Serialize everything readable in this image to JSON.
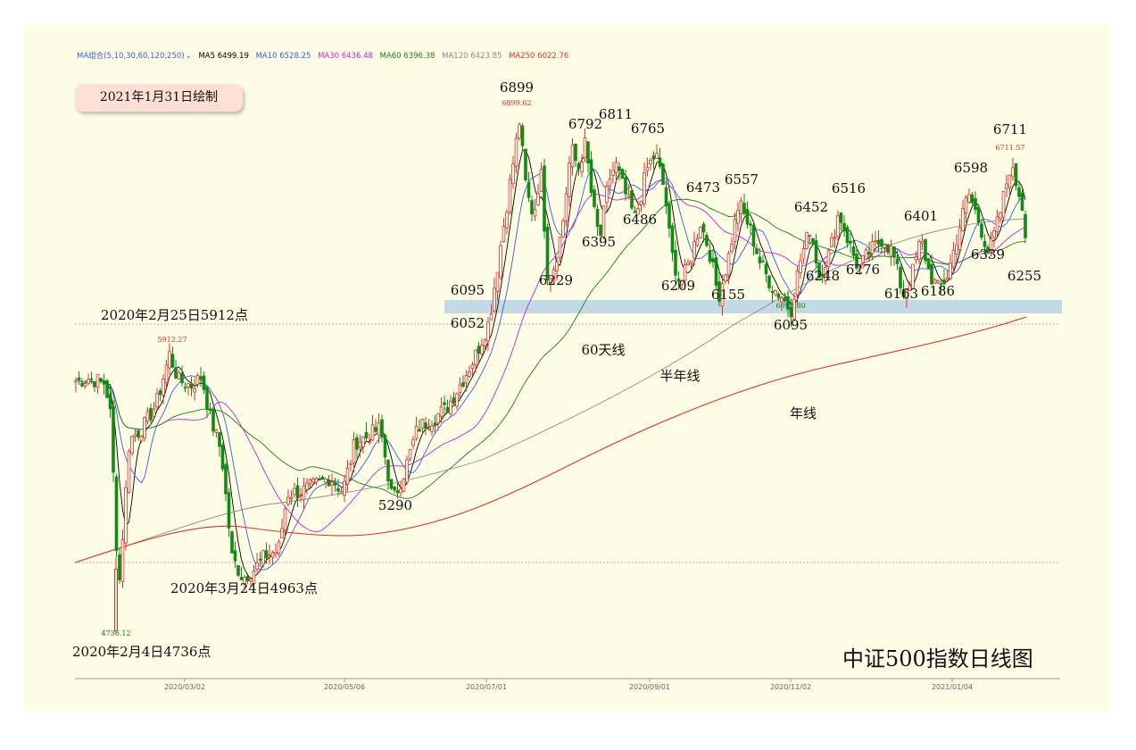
{
  "legend": {
    "group": "MA组合(5,10,30,60,120,250)",
    "items": [
      {
        "label": "MA5 6499.19",
        "color": "#000000"
      },
      {
        "label": "MA10 6528.25",
        "color": "#3a5bd9"
      },
      {
        "label": "MA30 6436.48",
        "color": "#d020d0"
      },
      {
        "label": "MA60 6396.38",
        "color": "#1e7a1e"
      },
      {
        "label": "MA120 6423.85",
        "color": "#888888"
      },
      {
        "label": "MA250 6022.76",
        "color": "#e03030"
      }
    ]
  },
  "date_badge": "2021年1月31日绘制",
  "main_title": "中证500指数日线图",
  "chart_data": {
    "type": "candlestick",
    "x_ticks": [
      "2020/03/02",
      "2020/05/06",
      "2020/07/01",
      "2020/09/01",
      "2020/11/02",
      "2021/01/04"
    ],
    "y_range": [
      4700,
      7000
    ],
    "price_peaks": [
      {
        "label": "6899",
        "value": 6899
      },
      {
        "label": "6792",
        "value": 6792
      },
      {
        "label": "6811",
        "value": 6811
      },
      {
        "label": "6765",
        "value": 6765
      },
      {
        "label": "6473",
        "value": 6473
      },
      {
        "label": "6557",
        "value": 6557
      },
      {
        "label": "6452",
        "value": 6452
      },
      {
        "label": "6516",
        "value": 6516
      },
      {
        "label": "6401",
        "value": 6401
      },
      {
        "label": "6598",
        "value": 6598
      },
      {
        "label": "6711",
        "value": 6711
      }
    ],
    "price_troughs": [
      {
        "label": "6095",
        "value": 6095
      },
      {
        "label": "6052",
        "value": 6052
      },
      {
        "label": "6229",
        "value": 6229
      },
      {
        "label": "6395",
        "value": 6395
      },
      {
        "label": "6486",
        "value": 6486
      },
      {
        "label": "6209",
        "value": 6209
      },
      {
        "label": "6155",
        "value": 6155
      },
      {
        "label": "6248",
        "value": 6248
      },
      {
        "label": "6276",
        "value": 6276
      },
      {
        "label": "6163",
        "value": 6163
      },
      {
        "label": "6186",
        "value": 6186
      },
      {
        "label": "6339",
        "value": 6339
      },
      {
        "label": "6255",
        "value": 6255
      },
      {
        "label": "6095",
        "value": 6095
      },
      {
        "label": "5290",
        "value": 5290
      }
    ],
    "marks": {
      "high_2020": "6899.62",
      "high_recent": "6711.57",
      "low_nov": "6095.80",
      "high_feb": "5912.27",
      "low_feb": "4736.12"
    },
    "key_notes": [
      "2020年2月25日5912点",
      "2020年3月24日4963点",
      "2020年2月4日4736点"
    ],
    "ma_notes": {
      "ma60": "60天线",
      "ma120": "半年线",
      "ma250": "年线"
    },
    "support_band": [
      6052,
      6095
    ],
    "ref_lines": [
      5912,
      4963
    ]
  },
  "colors": {
    "up": "#e03030",
    "down": "#138a13",
    "band": "#bcd6e6",
    "panel": "#fdfde6"
  }
}
